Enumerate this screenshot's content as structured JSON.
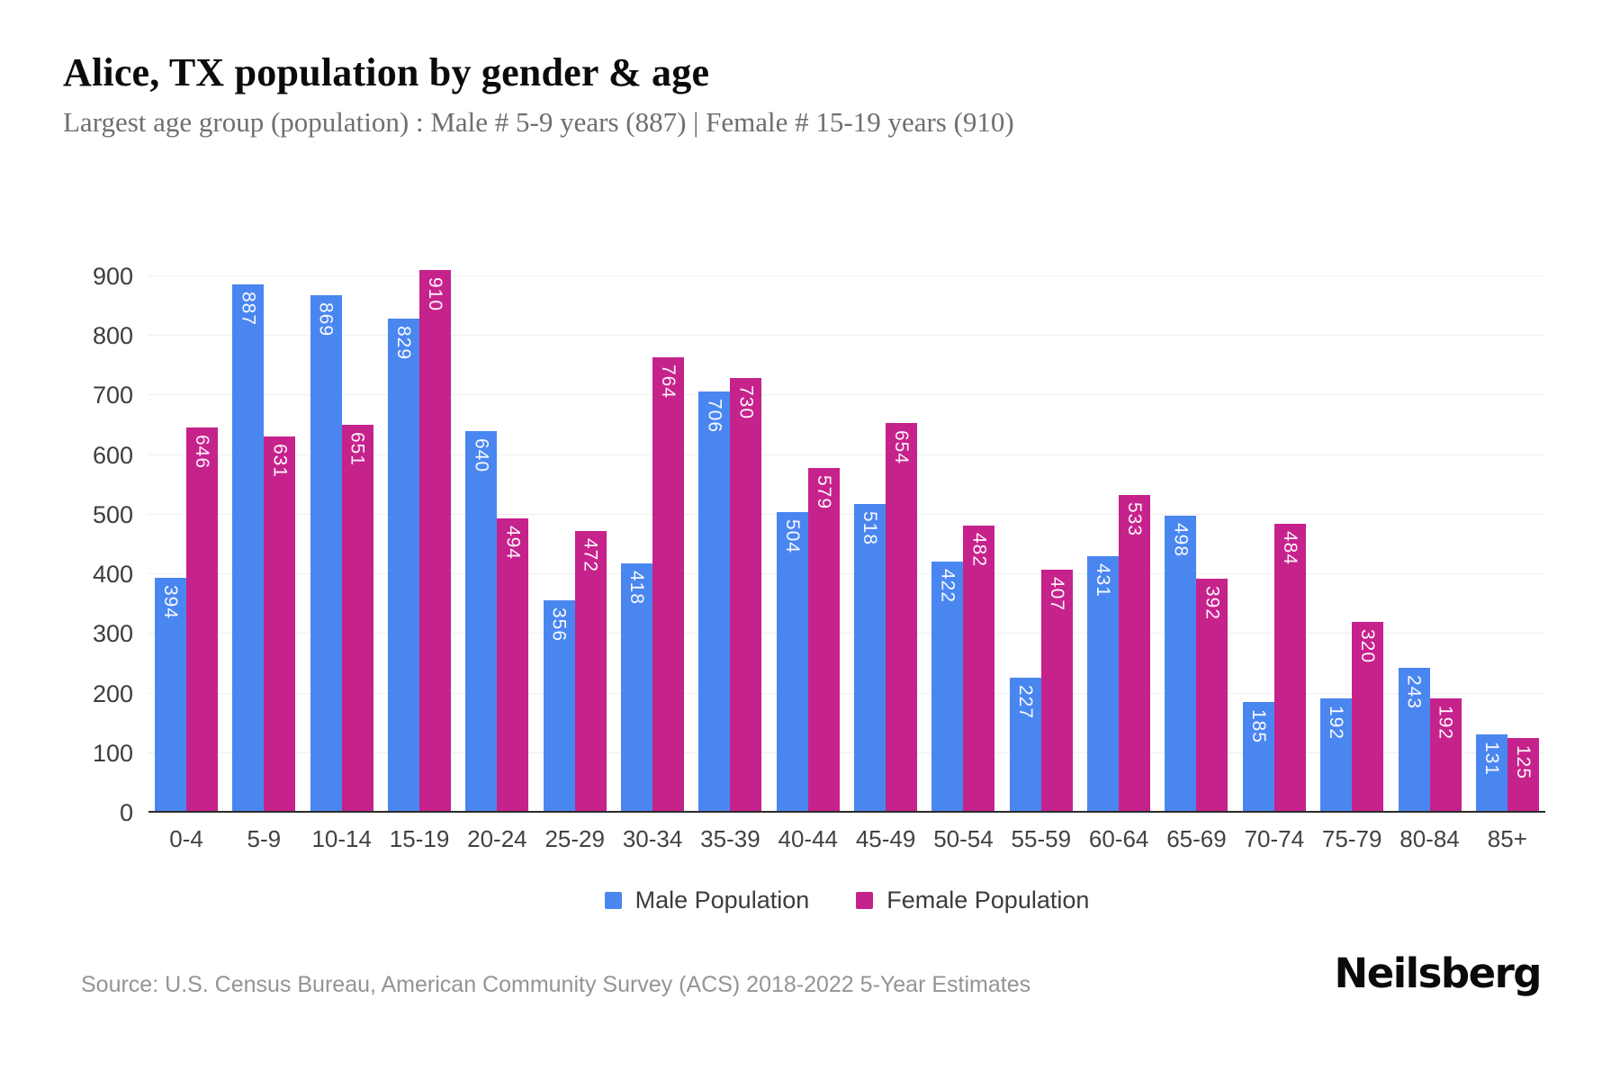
{
  "header": {
    "title": "Alice, TX population by gender & age",
    "subtitle": "Largest age group (population) : Male # 5-9 years (887) | Female # 15-19 years (910)"
  },
  "chart_data": {
    "type": "bar",
    "grouped": true,
    "title": "Alice, TX population by gender & age",
    "xlabel": "",
    "ylabel": "",
    "categories": [
      "0-4",
      "5-9",
      "10-14",
      "15-19",
      "20-24",
      "25-29",
      "30-34",
      "35-39",
      "40-44",
      "45-49",
      "50-54",
      "55-59",
      "60-64",
      "65-69",
      "70-74",
      "75-79",
      "80-84",
      "85+"
    ],
    "series": [
      {
        "name": "Male Population",
        "color": "#4A86F0",
        "values": [
          394,
          887,
          869,
          829,
          640,
          356,
          418,
          706,
          504,
          518,
          422,
          227,
          431,
          498,
          185,
          192,
          243,
          131
        ]
      },
      {
        "name": "Female Population",
        "color": "#C6228C",
        "values": [
          646,
          631,
          651,
          910,
          494,
          472,
          764,
          730,
          579,
          654,
          482,
          407,
          533,
          392,
          484,
          320,
          192,
          125
        ]
      }
    ],
    "ylim": [
      0,
      900
    ],
    "yticks": [
      0,
      100,
      200,
      300,
      400,
      500,
      600,
      700,
      800,
      900
    ],
    "grid": true,
    "legend_position": "bottom",
    "value_labels": "inside-top-rotated-90"
  },
  "colors": {
    "male": "#4A86F0",
    "female": "#C6228C",
    "gridline": "#efefef",
    "axis_line": "#2b2b2b",
    "bar_label_text": "#ffffff"
  },
  "footer": {
    "source": "Source: U.S. Census Bureau, American Community Survey (ACS) 2018-2022 5-Year Estimates",
    "brand": "Neilsberg"
  }
}
